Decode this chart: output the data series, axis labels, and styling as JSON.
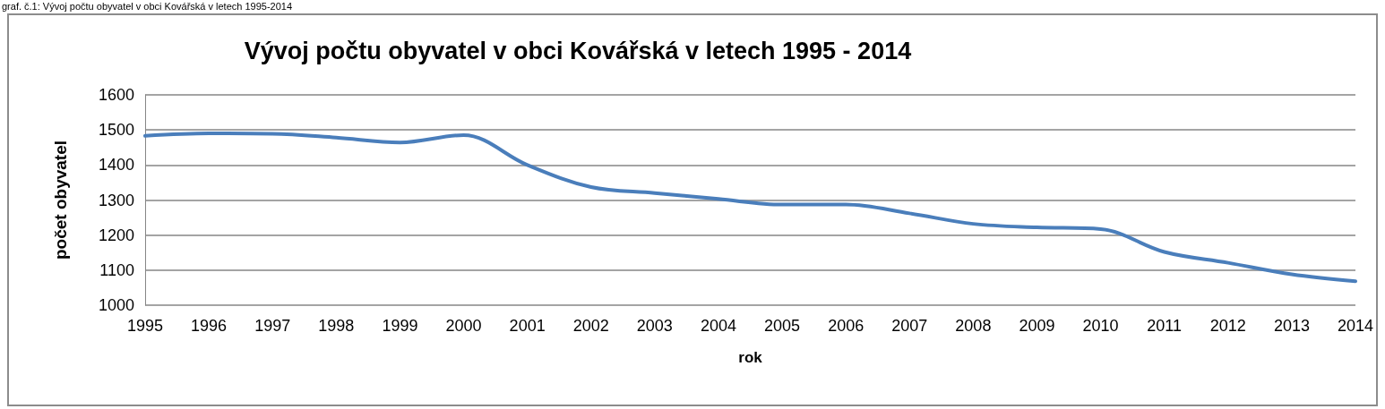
{
  "chart_data": {
    "type": "line",
    "title": "Vývoj počtu obyvatel v obci Kovářská v letech 1995 - 2014",
    "xlabel": "rok",
    "ylabel": "počet obyvatel",
    "annotations": [
      "graf. č.1: Vývoj počtu obyvatel v obci Kovářská v letech 1995-2014"
    ],
    "categories": [
      "1995",
      "1996",
      "1997",
      "1998",
      "1999",
      "2000",
      "2001",
      "2002",
      "2003",
      "2004",
      "2005",
      "2006",
      "2007",
      "2008",
      "2009",
      "2010",
      "2011",
      "2012",
      "2013",
      "2014"
    ],
    "series": [
      {
        "color": "#4a7ebb",
        "values": [
          1483,
          1490,
          1489,
          1478,
          1464,
          1485,
          1400,
          1337,
          1320,
          1303,
          1287,
          1287,
          1262,
          1232,
          1222,
          1217,
          1152,
          1121,
          1088,
          1068
        ]
      }
    ],
    "ylim": [
      1000,
      1600
    ],
    "yticks": [
      1000,
      1100,
      1200,
      1300,
      1400,
      1500,
      1600
    ],
    "grid": "y",
    "marker": "none",
    "line_style": "solid"
  }
}
